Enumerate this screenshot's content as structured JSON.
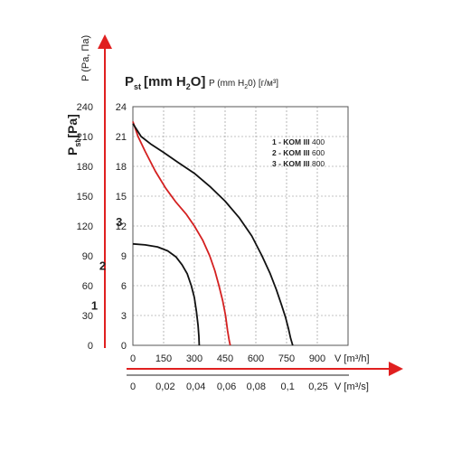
{
  "chart_data": {
    "type": "line",
    "y_left_label": "P",
    "y_left_label_sub": "st",
    "y_left_label_unit": "[Pa]",
    "y_right_label": "P (Pa, Па)",
    "top_label_main": "P",
    "top_label_sub": "st",
    "top_label_unit": "[mm H",
    "top_label_sub2": "2",
    "top_label_end": "O]",
    "top_label_2": "P (mm H",
    "top_label_2_sub": "2",
    "top_label_2_end": "0) [г/м³]",
    "x_label_1": "V [m³/h]",
    "x_label_2": "V [m³/s]",
    "x_ticks_1": [
      "0",
      "150",
      "300",
      "450",
      "600",
      "750",
      "900"
    ],
    "x_ticks_2": [
      "0",
      "0,02",
      "0,04",
      "0,06",
      "0,08",
      "0,1",
      "0,25"
    ],
    "y_ticks_pa": [
      "0",
      "30",
      "60",
      "90",
      "120",
      "150",
      "180",
      "210",
      "240"
    ],
    "y_ticks_mm": [
      "0",
      "3",
      "6",
      "9",
      "12",
      "15",
      "18",
      "21",
      "24"
    ],
    "xlim": [
      0,
      1050
    ],
    "ylim": [
      0,
      24
    ],
    "grid": true,
    "legend_position": "top-right",
    "legend": [
      {
        "prefix": "1 - KOM",
        "model": "III",
        "size": "400"
      },
      {
        "prefix": "2 - KOM",
        "model": "III",
        "size": "600"
      },
      {
        "prefix": "3 - KOM",
        "model": "III",
        "size": "800"
      }
    ],
    "series": [
      {
        "label": "1",
        "color": "#111111",
        "x": [
          0,
          60,
          120,
          170,
          210,
          240,
          265,
          285,
          300,
          310,
          318,
          322,
          324
        ],
        "y": [
          10.2,
          10.1,
          9.9,
          9.5,
          8.9,
          8.1,
          7.2,
          6.0,
          4.8,
          3.4,
          2.0,
          0.9,
          0
        ]
      },
      {
        "label": "2",
        "color": "#d42020",
        "x": [
          0,
          25,
          60,
          110,
          160,
          210,
          260,
          300,
          340,
          375,
          400,
          420,
          438,
          452,
          462,
          470,
          475
        ],
        "y": [
          22.5,
          21.0,
          19.5,
          17.5,
          15.8,
          14.4,
          13.2,
          12.0,
          10.6,
          9.0,
          7.5,
          6.0,
          4.5,
          3.0,
          1.5,
          0.5,
          0
        ]
      },
      {
        "label": "3",
        "color": "#111111",
        "x": [
          0,
          40,
          90,
          150,
          220,
          300,
          380,
          450,
          520,
          580,
          630,
          670,
          700,
          725,
          745,
          760,
          770,
          780
        ],
        "y": [
          22.3,
          21.0,
          20.2,
          19.4,
          18.4,
          17.3,
          15.9,
          14.5,
          12.8,
          11.0,
          9.0,
          7.2,
          5.6,
          4.1,
          2.8,
          1.6,
          0.7,
          0
        ]
      }
    ],
    "curve_label_positions": [
      {
        "label": "1",
        "x": 370,
        "y": 3.6
      },
      {
        "label": "2",
        "x": 410,
        "y": 7.6
      },
      {
        "label": "3",
        "x": 490,
        "y": 12.0
      }
    ]
  }
}
